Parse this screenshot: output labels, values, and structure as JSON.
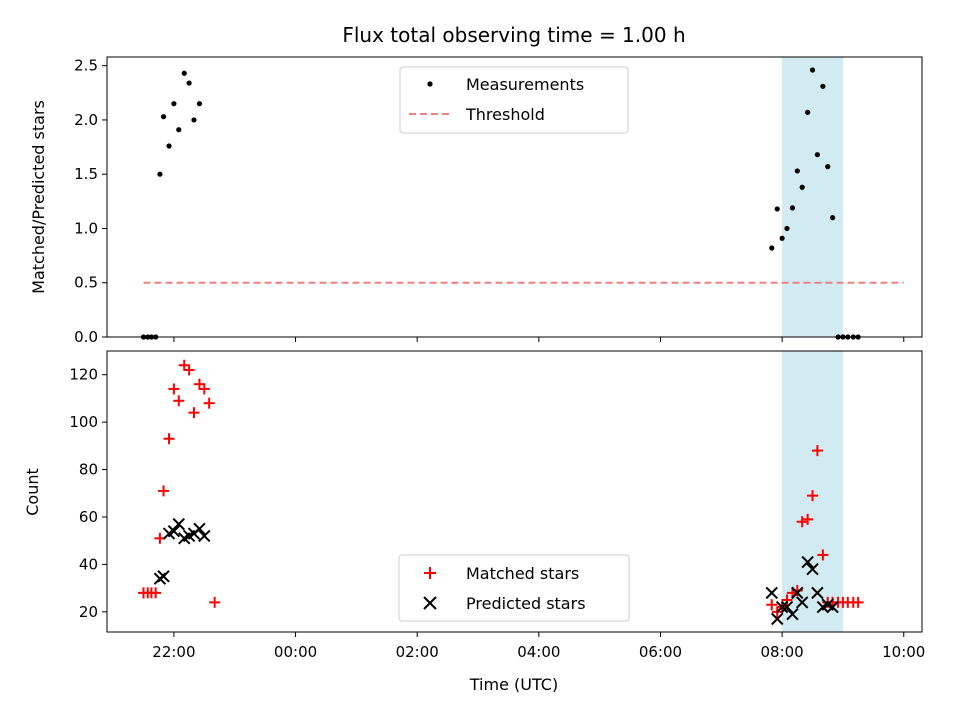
{
  "colors": {
    "background": "#ffffff",
    "span": "#add8e6",
    "measurements": "#000000",
    "threshold": "#f08080",
    "matched": "#ff0000",
    "predicted": "#000000"
  },
  "chart_data": {
    "title": "Flux total observing time = 1.00 h",
    "xlabel": "Time (UTC)",
    "x_ticks": [
      "22:00",
      "00:00",
      "02:00",
      "04:00",
      "06:00",
      "08:00",
      "10:00"
    ],
    "x_tick_hours": [
      22,
      24,
      26,
      28,
      30,
      32,
      34
    ],
    "xlim_hours": [
      20.9,
      34.3
    ],
    "shaded_span_hours": [
      32.0,
      33.0
    ],
    "panels": [
      {
        "type": "scatter",
        "ylabel": "Matched/Predicted stars",
        "ylim": [
          0,
          2.58
        ],
        "y_ticks": [
          0.0,
          0.5,
          1.0,
          1.5,
          2.0,
          2.5
        ],
        "y_tick_labels": [
          "0.0",
          "0.5",
          "1.0",
          "1.5",
          "2.0",
          "2.5"
        ],
        "legend_position": "upper center",
        "series": [
          {
            "name": "Measurements",
            "marker": "dot",
            "x_hours": [
              21.5,
              21.57,
              21.63,
              21.7,
              21.77,
              21.83,
              21.92,
              22.0,
              22.08,
              22.17,
              22.25,
              22.33,
              22.42,
              31.83,
              31.92,
              32.0,
              32.08,
              32.17,
              32.25,
              32.33,
              32.42,
              32.5,
              32.58,
              32.67,
              32.75,
              32.83,
              32.92,
              33.0,
              33.08,
              33.17,
              33.25
            ],
            "y": [
              0,
              0,
              0,
              0,
              1.5,
              2.03,
              1.76,
              2.15,
              1.91,
              2.43,
              2.34,
              2.0,
              2.15,
              0.82,
              1.18,
              0.91,
              1.0,
              1.19,
              1.53,
              1.38,
              2.07,
              2.46,
              1.68,
              2.31,
              1.57,
              1.1,
              0,
              0,
              0,
              0,
              0
            ]
          },
          {
            "name": "Threshold",
            "style": "dashed",
            "x_hours": [
              21.5,
              34.0
            ],
            "y": [
              0.5,
              0.5
            ]
          }
        ]
      },
      {
        "type": "scatter",
        "ylabel": "Count",
        "ylim": [
          11.5,
          130
        ],
        "y_ticks": [
          20,
          40,
          60,
          80,
          100,
          120
        ],
        "y_tick_labels": [
          "20",
          "40",
          "60",
          "80",
          "100",
          "120"
        ],
        "legend_position": "lower center",
        "series": [
          {
            "name": "Matched stars",
            "marker": "plus",
            "x_hours": [
              21.5,
              21.57,
              21.63,
              21.7,
              21.77,
              21.83,
              21.92,
              22.0,
              22.08,
              22.17,
              22.25,
              22.33,
              22.42,
              22.5,
              22.58,
              22.67,
              31.83,
              31.92,
              32.0,
              32.08,
              32.17,
              32.25,
              32.33,
              32.42,
              32.5,
              32.58,
              32.67,
              32.75,
              32.83,
              32.92,
              33.0,
              33.08,
              33.17,
              33.25
            ],
            "y": [
              28,
              28,
              28,
              28,
              51,
              71,
              93,
              114,
              109,
              124,
              122,
              104,
              116,
              114,
              108,
              24,
              23,
              20,
              22,
              25,
              28,
              29,
              58,
              59,
              69,
              88,
              44,
              24,
              24,
              24,
              24,
              24,
              24,
              24
            ]
          },
          {
            "name": "Predicted stars",
            "marker": "x",
            "x_hours": [
              21.77,
              21.83,
              21.92,
              22.0,
              22.08,
              22.17,
              22.25,
              22.33,
              22.42,
              22.5,
              31.83,
              31.92,
              32.0,
              32.08,
              32.17,
              32.25,
              32.33,
              32.42,
              32.5,
              32.58,
              32.67,
              32.75,
              32.83
            ],
            "y": [
              34,
              35,
              53,
              54,
              57,
              51,
              52,
              53,
              55,
              52,
              28,
              17,
              22,
              22,
              19,
              28,
              24,
              41,
              38,
              28,
              22,
              23,
              22
            ]
          }
        ]
      }
    ]
  }
}
